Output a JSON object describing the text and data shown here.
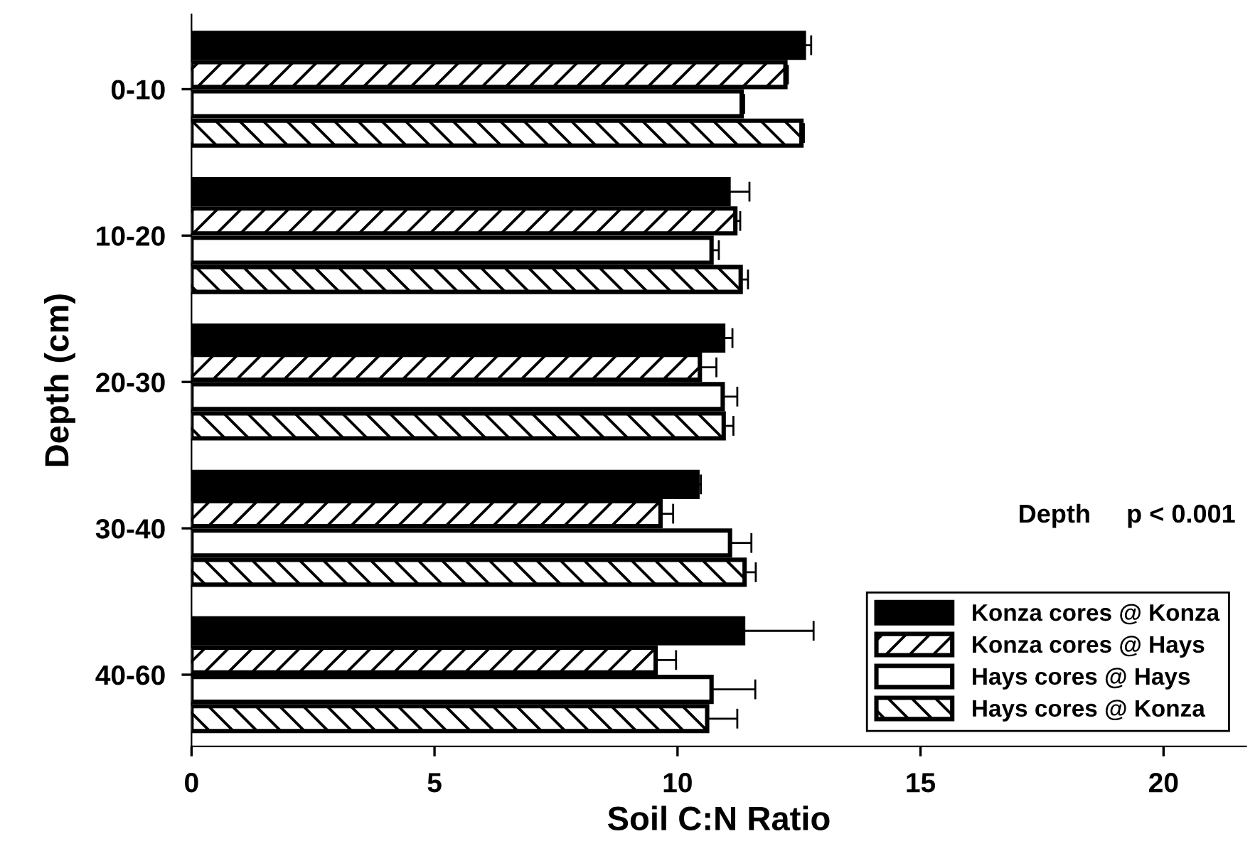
{
  "chart_data": {
    "type": "bar",
    "orientation": "horizontal",
    "xlabel": "Soil C:N Ratio",
    "ylabel": "Depth (cm)",
    "categories": [
      "0-10",
      "10-20",
      "20-30",
      "30-40",
      "40-60"
    ],
    "series": [
      {
        "name": "Konza cores @ Konza",
        "color": "#000000",
        "values": [
          12.6,
          11.05,
          10.94,
          10.41,
          11.35
        ],
        "errors": [
          0.15,
          0.43,
          0.19,
          0.07,
          1.45
        ]
      },
      {
        "name": "Konza cores @ Hays",
        "color": "#000000",
        "values": [
          12.22,
          11.19,
          10.46,
          9.65,
          9.55
        ],
        "errors": [
          0.05,
          0.1,
          0.34,
          0.26,
          0.42
        ]
      },
      {
        "name": "Hays cores @ Hays",
        "color": "#ffffff",
        "values": [
          11.32,
          10.7,
          10.93,
          11.08,
          10.7
        ],
        "errors": [
          0.05,
          0.15,
          0.3,
          0.44,
          0.9
        ]
      },
      {
        "name": "Hays cores @ Konza",
        "color": "#000000",
        "values": [
          12.55,
          11.3,
          10.95,
          11.38,
          10.61
        ],
        "errors": [
          0.05,
          0.15,
          0.2,
          0.23,
          0.62
        ]
      }
    ],
    "xlim": [
      0,
      21.7
    ],
    "xticks": [
      0,
      5,
      10,
      15,
      20
    ],
    "grid": false,
    "legend": "bottom right",
    "annotations": [
      "Depth     p < 0.001"
    ]
  }
}
